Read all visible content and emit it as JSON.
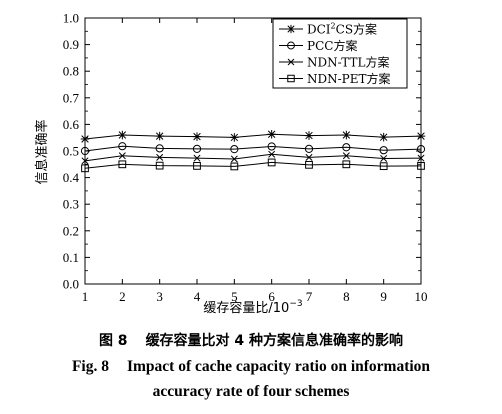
{
  "chart_data": {
    "type": "line",
    "xlabel_prefix": "缓存容量比/10",
    "xlabel_exp": "−3",
    "ylabel": "信息准确率",
    "x": [
      1,
      2,
      3,
      4,
      5,
      6,
      7,
      8,
      9,
      10
    ],
    "xlim": [
      1,
      10
    ],
    "ylim": [
      0.0,
      1.0
    ],
    "xticks": [
      "1",
      "2",
      "3",
      "4",
      "5",
      "6",
      "7",
      "8",
      "9",
      "10"
    ],
    "yticks": [
      "0.0",
      "0.1",
      "0.2",
      "0.3",
      "0.4",
      "0.5",
      "0.6",
      "0.7",
      "0.8",
      "0.9",
      "1.0"
    ],
    "grid": false,
    "legend_position": "top-right",
    "series": [
      {
        "name_pre": "DCI",
        "name_sup": "2",
        "name_post": "CS方案",
        "marker": "asterisk",
        "values": [
          0.545,
          0.56,
          0.556,
          0.554,
          0.551,
          0.563,
          0.558,
          0.56,
          0.552,
          0.556
        ]
      },
      {
        "name_pre": "PCC方案",
        "name_sup": "",
        "name_post": "",
        "marker": "circle",
        "values": [
          0.5,
          0.518,
          0.51,
          0.508,
          0.507,
          0.517,
          0.508,
          0.514,
          0.503,
          0.507
        ]
      },
      {
        "name_pre": "NDN-TTL方案",
        "name_sup": "",
        "name_post": "",
        "marker": "x",
        "values": [
          0.463,
          0.482,
          0.476,
          0.473,
          0.47,
          0.488,
          0.476,
          0.482,
          0.472,
          0.473
        ]
      },
      {
        "name_pre": "NDN-PET方案",
        "name_sup": "",
        "name_post": "",
        "marker": "square",
        "values": [
          0.435,
          0.45,
          0.445,
          0.444,
          0.442,
          0.457,
          0.448,
          0.45,
          0.443,
          0.444
        ]
      }
    ]
  },
  "caption": {
    "cn_num": "图 8",
    "cn_text": "缓存容量比对 4 种方案信息准确率的影响",
    "en_num": "Fig. 8",
    "en_line1": "Impact of cache capacity ratio on information",
    "en_line2": "accuracy rate of four schemes"
  }
}
